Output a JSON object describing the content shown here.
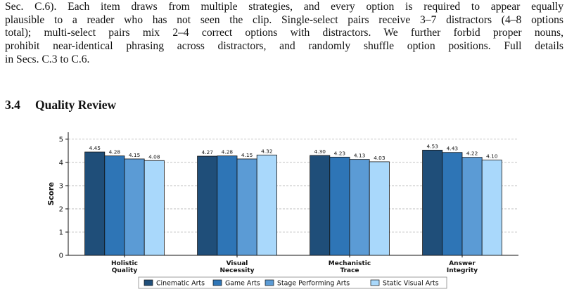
{
  "paragraph": {
    "lines": [
      "Sec. C.6). Each item draws from multiple strategies, and every option is required to appear equally",
      "plausible to a reader who has not seen the clip. Single-select pairs receive 3–7 distractors (4–8 options",
      "total); multi-select pairs mix 2–4 correct options with distractors. We further forbid proper nouns,",
      "prohibit near-identical phrasing across distractors, and randomly shuffle option positions. Full details",
      "in Secs. C.3 to C.6."
    ]
  },
  "section": {
    "number": "3.4",
    "title": "Quality Review"
  },
  "chart_data": {
    "type": "bar",
    "categories": [
      [
        "Holistic",
        "Quality"
      ],
      [
        "Visual",
        "Necessity"
      ],
      [
        "Mechanistic",
        "Trace"
      ],
      [
        "Answer",
        "Integrity"
      ]
    ],
    "series": [
      {
        "name": "Cinematic Arts",
        "color": "#1f4e79",
        "values": [
          4.45,
          4.27,
          4.3,
          4.53
        ]
      },
      {
        "name": "Game Arts",
        "color": "#2e75b6",
        "values": [
          4.28,
          4.28,
          4.23,
          4.43
        ]
      },
      {
        "name": "Stage Performing Arts",
        "color": "#5b9bd5",
        "values": [
          4.15,
          4.15,
          4.13,
          4.22
        ]
      },
      {
        "name": "Static Visual Arts",
        "color": "#a9d8fb",
        "values": [
          4.08,
          4.32,
          4.03,
          4.1
        ]
      }
    ],
    "ylabel": "Score",
    "ylim": [
      0,
      5.3
    ],
    "yticks": [
      0,
      1,
      2,
      3,
      4,
      5
    ],
    "grid": "horizontal-dashed",
    "legend": "bottom-center"
  }
}
